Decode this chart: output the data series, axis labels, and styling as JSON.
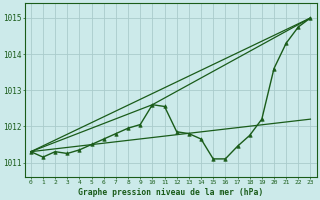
{
  "title": "Graphe pression niveau de la mer (hPa)",
  "background_color": "#cceaea",
  "grid_color": "#aacccc",
  "line_color": "#1a5c1a",
  "xlim": [
    -0.5,
    23.5
  ],
  "ylim": [
    1010.6,
    1015.4
  ],
  "yticks": [
    1011,
    1012,
    1013,
    1014,
    1015
  ],
  "xticks": [
    0,
    1,
    2,
    3,
    4,
    5,
    6,
    7,
    8,
    9,
    10,
    11,
    12,
    13,
    14,
    15,
    16,
    17,
    18,
    19,
    20,
    21,
    22,
    23
  ],
  "series": [
    {
      "x": [
        0,
        1,
        2,
        3,
        4,
        5,
        6,
        7,
        8,
        9,
        10,
        11,
        12,
        13,
        14,
        15,
        16,
        17,
        18,
        19,
        20,
        21,
        22,
        23
      ],
      "y": [
        1011.3,
        1011.15,
        1011.3,
        1011.25,
        1011.35,
        1011.5,
        1011.65,
        1011.8,
        1011.95,
        1012.05,
        1012.6,
        1012.55,
        1011.85,
        1011.8,
        1011.65,
        1011.1,
        1011.1,
        1011.45,
        1011.75,
        1012.2,
        1013.6,
        1014.3,
        1014.75,
        1015.0
      ],
      "marker": "^",
      "markersize": 2.5,
      "linewidth": 1.0,
      "use_marker": true
    },
    {
      "x": [
        0,
        23
      ],
      "y": [
        1011.3,
        1015.0
      ],
      "marker": null,
      "linewidth": 0.9,
      "use_marker": false
    },
    {
      "x": [
        0,
        10,
        23
      ],
      "y": [
        1011.3,
        1012.6,
        1015.0
      ],
      "marker": null,
      "linewidth": 0.9,
      "use_marker": false
    },
    {
      "x": [
        0,
        23
      ],
      "y": [
        1011.3,
        1012.2
      ],
      "marker": null,
      "linewidth": 0.9,
      "use_marker": false
    }
  ]
}
